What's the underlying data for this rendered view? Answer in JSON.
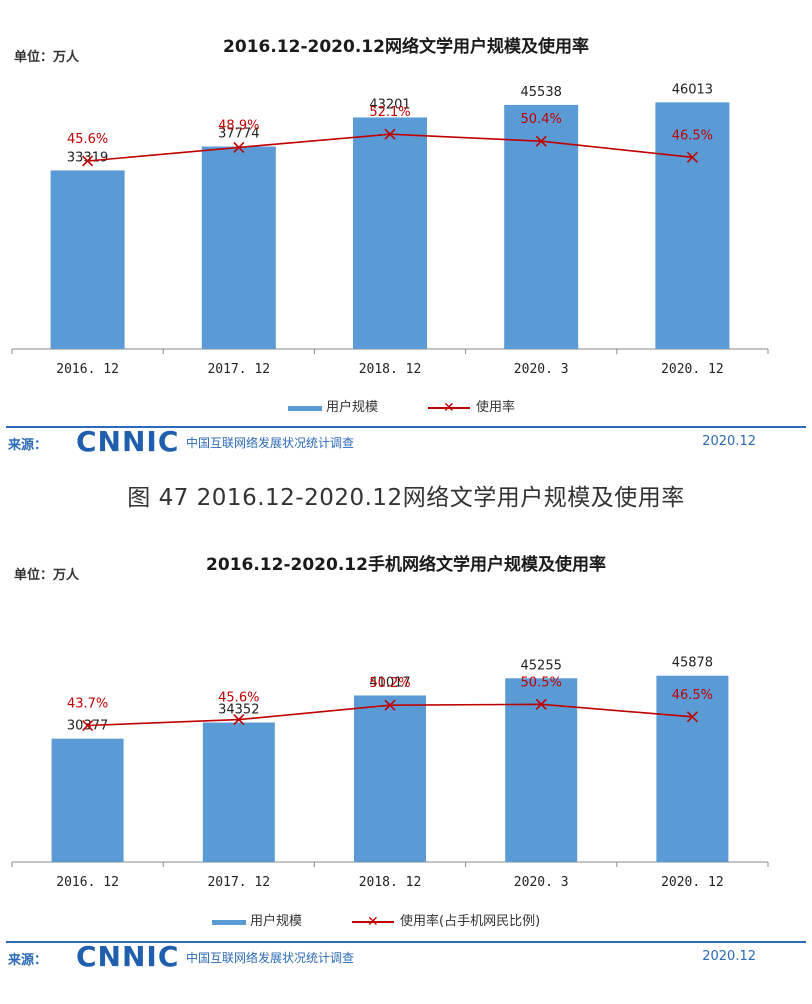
{
  "caption": "图 47 2016.12-2020.12网络文学用户规模及使用率",
  "chart_data": [
    {
      "type": "bar",
      "title": "2016.12-2020.12网络文学用户规模及使用率",
      "unit_label": "单位：万人",
      "categories": [
        "2016.12",
        "2017.12",
        "2018.12",
        "2020.3",
        "2020.12"
      ],
      "series": [
        {
          "name": "用户规模",
          "type": "bar",
          "color": "#5b9bd5",
          "values": [
            33319,
            37774,
            43201,
            45538,
            46013
          ]
        },
        {
          "name": "使用率",
          "type": "line",
          "color": "#c00000",
          "values": [
            45.6,
            48.9,
            52.1,
            50.4,
            46.5
          ],
          "labels": [
            "45.6%",
            "48.9%",
            "52.1%",
            "50.4%",
            "46.5%"
          ]
        }
      ],
      "ylim": [
        0,
        50000
      ],
      "y2lim": [
        0,
        65
      ],
      "legend": {
        "bar": "用户规模",
        "line": "使用率"
      },
      "source_label": "来源：",
      "logo": "CNNIC",
      "source_org": "中国互联网络发展状况统计调查",
      "date": "2020.12"
    },
    {
      "type": "bar",
      "title": "2016.12-2020.12手机网络文学用户规模及使用率",
      "unit_label": "单位：万人",
      "categories": [
        "2016.12",
        "2017.12",
        "2018.12",
        "2020.3",
        "2020.12"
      ],
      "series": [
        {
          "name": "用户规模",
          "type": "bar",
          "color": "#5b9bd5",
          "values": [
            30377,
            34352,
            41017,
            45255,
            45878
          ]
        },
        {
          "name": "使用率(占手机网民比例)",
          "type": "line",
          "color": "#c00000",
          "values": [
            43.7,
            45.6,
            50.2,
            50.5,
            46.5
          ],
          "labels": [
            "43.7%",
            "45.6%",
            "50.2%",
            "50.5%",
            "46.5%"
          ]
        }
      ],
      "ylim": [
        0,
        50000
      ],
      "y2lim": [
        0,
        65
      ],
      "legend": {
        "bar": "用户规模",
        "line": "使用率(占手机网民比例)"
      },
      "source_label": "来源：",
      "logo": "CNNIC",
      "source_org": "中国互联网络发展状况统计调查",
      "date": "2020.12"
    }
  ]
}
